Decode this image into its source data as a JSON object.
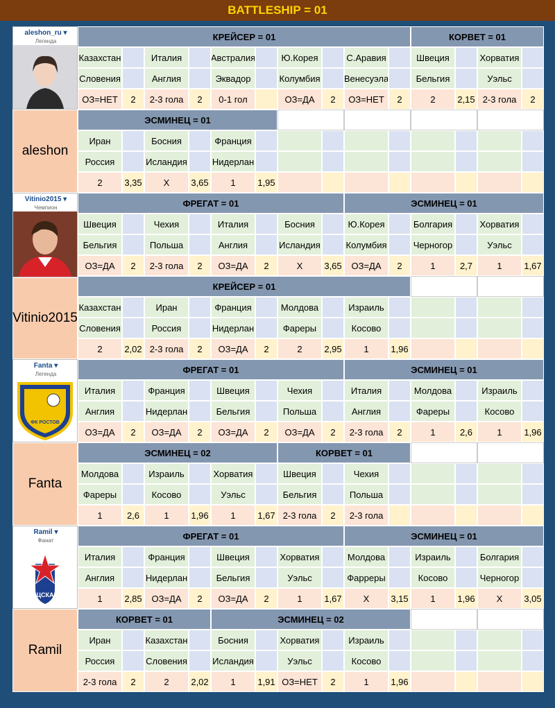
{
  "header": {
    "title": "BATTLESHIP = 01"
  },
  "users": [
    {
      "name": "aleshon_ru",
      "rank": "Легенда",
      "display": "aleshon",
      "groups": [
        {
          "blocks": [
            {
              "title": "КРЕЙСЕР = 01",
              "pairs": [
                {
                  "a": "Казахстан",
                  "b": "Словения",
                  "bet": "ОЗ=НЕТ",
                  "odds": "2"
                },
                {
                  "a": "Италия",
                  "b": "Англия",
                  "bet": "2-3 гола",
                  "odds": "2"
                },
                {
                  "a": "Австралия",
                  "b": "Эквадор",
                  "bet": "0-1 гол"
                },
                {
                  "a": "Ю.Корея",
                  "b": "Колумбия",
                  "bet": "ОЗ=ДА",
                  "odds": "2"
                },
                {
                  "a": "С.Аравия",
                  "b": "Венесуэла",
                  "bet": "ОЗ=НЕТ",
                  "odds": "2"
                }
              ]
            },
            {
              "title": "КОРВЕТ = 01",
              "pairs": [
                {
                  "a": "Швеция",
                  "b": "Бельгия",
                  "bet": "2",
                  "odds": "2,15"
                },
                {
                  "a": "Хорватия",
                  "b": "Уэльс",
                  "bet": "2-3 гола",
                  "odds": "2"
                }
              ]
            }
          ]
        },
        {
          "blocks": [
            {
              "title": "ЭСМИНЕЦ = 01",
              "pairs": [
                {
                  "a": "Иран",
                  "b": "Россия",
                  "bet": "2",
                  "odds": "3,35"
                },
                {
                  "a": "Босния",
                  "b": "Исландия",
                  "bet": "X",
                  "odds": "3,65"
                },
                {
                  "a": "Франция",
                  "b": "Нидерлан",
                  "bet": "1",
                  "odds": "1,95"
                }
              ]
            }
          ]
        }
      ]
    },
    {
      "name": "Vitinio2015",
      "rank": "Чемпион",
      "display": "Vitinio2015",
      "groups": [
        {
          "blocks": [
            {
              "title": "ФРЕГАТ = 01",
              "pairs": [
                {
                  "a": "Швеция",
                  "b": "Бельгия",
                  "bet": "ОЗ=ДА",
                  "odds": "2"
                },
                {
                  "a": "Чехия",
                  "b": "Польша",
                  "bet": "2-3 гола",
                  "odds": "2"
                },
                {
                  "a": "Италия",
                  "b": "Англия",
                  "bet": "ОЗ=ДА",
                  "odds": "2"
                },
                {
                  "a": "Босния",
                  "b": "Исландия",
                  "bet": "X",
                  "odds": "3,65"
                }
              ]
            },
            {
              "title": "ЭСМИНЕЦ = 01",
              "pairs": [
                {
                  "a": "Ю.Корея",
                  "b": "Колумбия",
                  "bet": "ОЗ=ДА",
                  "odds": "2"
                },
                {
                  "a": "Болгария",
                  "b": "Черногор",
                  "bet": "1",
                  "odds": "2,7"
                },
                {
                  "a": "Хорватия",
                  "b": "Уэльс",
                  "bet": "1",
                  "odds": "1,67"
                }
              ]
            }
          ]
        },
        {
          "blocks": [
            {
              "title": "КРЕЙСЕР = 01",
              "pairs": [
                {
                  "a": "Казахстан",
                  "b": "Словения",
                  "bet": "2",
                  "odds": "2,02"
                },
                {
                  "a": "Иран",
                  "b": "Россия",
                  "bet": "2-3 гола",
                  "odds": "2"
                },
                {
                  "a": "Франция",
                  "b": "Нидерлан",
                  "bet": "ОЗ=ДА",
                  "odds": "2"
                },
                {
                  "a": "Молдова",
                  "b": "Фареры",
                  "bet": "2",
                  "odds": "2,95"
                },
                {
                  "a": "Израиль",
                  "b": "Косово",
                  "bet": "1",
                  "odds": "1,96"
                }
              ]
            }
          ]
        }
      ]
    },
    {
      "name": "Fanta",
      "rank": "Легенда",
      "display": "Fanta",
      "groups": [
        {
          "blocks": [
            {
              "title": "ФРЕГАТ = 01",
              "pairs": [
                {
                  "a": "Италия",
                  "b": "Англия",
                  "bet": "ОЗ=ДА",
                  "odds": "2"
                },
                {
                  "a": "Франция",
                  "b": "Нидерлан",
                  "bet": "ОЗ=ДА",
                  "odds": "2"
                },
                {
                  "a": "Швеция",
                  "b": "Бельгия",
                  "bet": "ОЗ=ДА",
                  "odds": "2"
                },
                {
                  "a": "Чехия",
                  "b": "Польша",
                  "bet": "ОЗ=ДА",
                  "odds": "2"
                }
              ]
            },
            {
              "title": "ЭСМИНЕЦ = 01",
              "pairs": [
                {
                  "a": "Италия",
                  "b": "Англия",
                  "bet": "2-3 гола",
                  "odds": "2"
                },
                {
                  "a": "Молдова",
                  "b": "Фареры",
                  "bet": "1",
                  "odds": "2,6"
                },
                {
                  "a": "Израиль",
                  "b": "Косово",
                  "bet": "1",
                  "odds": "1,96"
                }
              ]
            }
          ]
        },
        {
          "blocks": [
            {
              "title": "ЭСМИНЕЦ = 02",
              "pairs": [
                {
                  "a": "Молдова",
                  "b": "Фареры",
                  "bet": "1",
                  "odds": "2,6"
                },
                {
                  "a": "Израиль",
                  "b": "Косово",
                  "bet": "1",
                  "odds": "1,96"
                },
                {
                  "a": "Хорватия",
                  "b": "Уэльс",
                  "bet": "1",
                  "odds": "1,67"
                }
              ]
            },
            {
              "title": "КОРВЕТ = 01",
              "pairs": [
                {
                  "a": "Швеция",
                  "b": "Бельгия",
                  "bet": "2-3 гола",
                  "odds": "2"
                },
                {
                  "a": "Чехия",
                  "b": "Польша",
                  "bet": "2-3 гола"
                }
              ]
            }
          ]
        }
      ]
    },
    {
      "name": "Ramil",
      "rank": "Фанат",
      "display": "Ramil",
      "groups": [
        {
          "blocks": [
            {
              "title": "ФРЕГАТ = 01",
              "pairs": [
                {
                  "a": "Италия",
                  "b": "Англия",
                  "bet": "1",
                  "odds": "2,85"
                },
                {
                  "a": "Франция",
                  "b": "Нидерлан",
                  "bet": "ОЗ=ДА",
                  "odds": "2"
                },
                {
                  "a": "Швеция",
                  "b": "Бельгия",
                  "bet": "ОЗ=ДА",
                  "odds": "2"
                },
                {
                  "a": "Хорватия",
                  "b": "Уэльс",
                  "bet": "1",
                  "odds": "1,67"
                }
              ]
            },
            {
              "title": "ЭСМИНЕЦ = 01",
              "pairs": [
                {
                  "a": "Молдова",
                  "b": "Фарреры",
                  "bet": "X",
                  "odds": "3,15"
                },
                {
                  "a": "Израиль",
                  "b": "Косово",
                  "bet": "1",
                  "odds": "1,96"
                },
                {
                  "a": "Болгария",
                  "b": "Черногор",
                  "bet": "X",
                  "odds": "3,05"
                }
              ]
            }
          ]
        },
        {
          "blocks": [
            {
              "title": "КОРВЕТ = 01",
              "pairs": [
                {
                  "a": "Иран",
                  "b": "Россия",
                  "bet": "2-3 гола",
                  "odds": "2"
                },
                {
                  "a": "Казахстан",
                  "b": "Словения",
                  "bet": "2",
                  "odds": "2,02"
                }
              ]
            },
            {
              "title": "ЭСМИНЕЦ = 02",
              "pairs": [
                {
                  "a": "Босния",
                  "b": "Исландия",
                  "bet": "1",
                  "odds": "1,91"
                },
                {
                  "a": "Хорватия",
                  "b": "Уэльс",
                  "bet": "ОЗ=НЕТ",
                  "odds": "2"
                },
                {
                  "a": "Израиль",
                  "b": "Косово",
                  "bet": "1",
                  "odds": "1,96"
                }
              ]
            }
          ]
        }
      ]
    }
  ]
}
